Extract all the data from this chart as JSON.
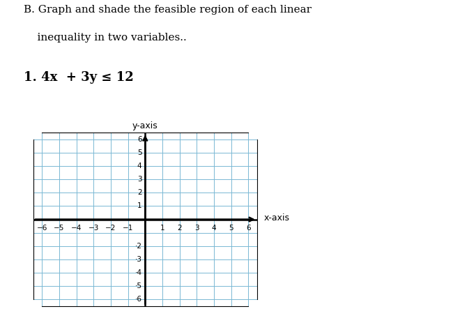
{
  "title_line1": "B. Graph and shade the feasible region of each linear",
  "title_line2": "    inequality in two variables..",
  "problem_label": "1. 4x  + 3y ≤ 12",
  "xlabel": "x-axis",
  "ylabel": "y-axis",
  "xlim": [
    -6.5,
    6.5
  ],
  "ylim": [
    -6.5,
    6.5
  ],
  "xticks_neg": [
    -6,
    -5,
    -4,
    -3,
    -2,
    -1
  ],
  "xticks_pos": [
    1,
    2,
    3,
    4,
    5,
    6
  ],
  "yticks_neg": [
    -6,
    -5,
    -4,
    -3,
    -2
  ],
  "yticks_pos": [
    1,
    2,
    3,
    4,
    5,
    6
  ],
  "grid_color": "#7ab8d4",
  "grid_linewidth": 0.7,
  "axis_linewidth": 1.8,
  "fig_width": 6.83,
  "fig_height": 4.43,
  "dpi": 100,
  "background_color": "#ffffff",
  "tick_fontsize": 7.5,
  "title_fontsize": 11,
  "problem_fontsize": 13,
  "label_fontsize": 9
}
